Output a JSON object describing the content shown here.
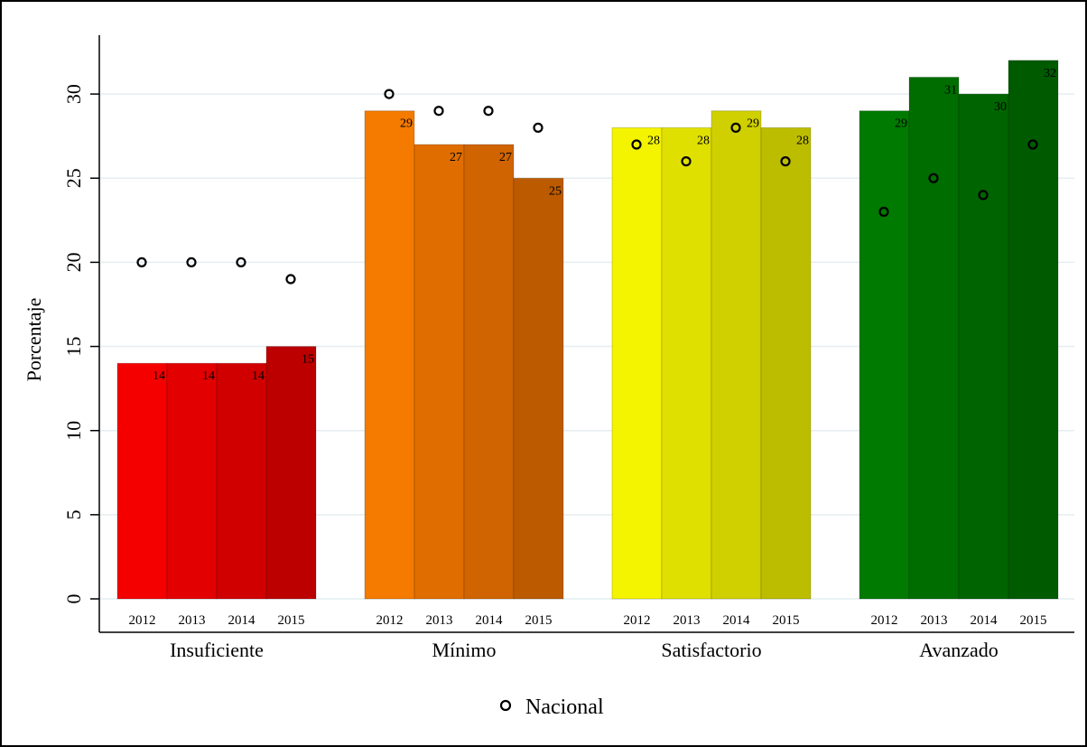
{
  "chart_data": {
    "type": "bar",
    "ylabel": "Porcentaje",
    "ylim": [
      0,
      32
    ],
    "yticks": [
      0,
      5,
      10,
      15,
      20,
      25,
      30
    ],
    "grid": true,
    "groups": [
      {
        "name": "Insuficiente",
        "years": [
          "2012",
          "2013",
          "2014",
          "2015"
        ],
        "values": [
          14,
          14,
          14,
          15
        ],
        "value_labels": [
          "14",
          "14",
          "14",
          "15"
        ],
        "nacional": [
          20,
          20,
          20,
          19
        ],
        "colors": [
          "#f40000",
          "#e20000",
          "#d00000",
          "#bc0000"
        ]
      },
      {
        "name": "Mínimo",
        "years": [
          "2012",
          "2013",
          "2014",
          "2015"
        ],
        "values": [
          29,
          27,
          27,
          25
        ],
        "value_labels": [
          "29",
          "27",
          "27",
          "25"
        ],
        "nacional": [
          30,
          29,
          29,
          28
        ],
        "colors": [
          "#f47a00",
          "#df6d00",
          "#cf6400",
          "#bc5a00"
        ]
      },
      {
        "name": "Satisfactorio",
        "years": [
          "2012",
          "2013",
          "2014",
          "2015"
        ],
        "values": [
          28,
          28,
          29,
          28
        ],
        "value_labels": [
          "28",
          "28",
          "29",
          "28"
        ],
        "nacional": [
          27,
          26,
          28,
          26
        ],
        "colors": [
          "#f4f400",
          "#e0e000",
          "#d0d000",
          "#bdbd00"
        ]
      },
      {
        "name": "Avanzado",
        "years": [
          "2012",
          "2013",
          "2014",
          "2015"
        ],
        "values": [
          29,
          31,
          30,
          32
        ],
        "value_labels": [
          "29",
          "31",
          "30",
          "32"
        ],
        "nacional": [
          23,
          25,
          24,
          27
        ],
        "colors": [
          "#007a00",
          "#006d00",
          "#006400",
          "#005a00"
        ]
      }
    ],
    "legend": {
      "position": "bottom",
      "entries": [
        "Nacional"
      ]
    }
  }
}
